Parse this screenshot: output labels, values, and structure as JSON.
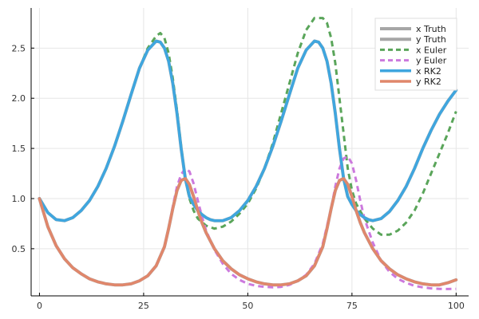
{
  "chart_data": {
    "type": "line",
    "title": "",
    "xlabel": "",
    "ylabel": "",
    "xlim": [
      -2,
      103
    ],
    "ylim": [
      0.03,
      2.9
    ],
    "xticks": [
      0,
      25,
      50,
      75,
      100
    ],
    "yticks": [
      0.5,
      1.0,
      1.5,
      2.0,
      2.5
    ],
    "xtick_labels": [
      "0",
      "25",
      "50",
      "75",
      "100"
    ],
    "ytick_labels": [
      "0.5",
      "1.0",
      "1.5",
      "2.0",
      "2.5"
    ],
    "grid": true,
    "legend_position": "top-right",
    "series": [
      {
        "name": "x Truth",
        "color": "#a6a6a6",
        "style": "solid",
        "width": 4,
        "x": [
          0,
          2,
          4,
          6,
          8,
          10,
          12,
          14,
          16,
          18,
          20,
          22,
          24,
          26,
          28,
          29,
          30,
          31,
          32,
          33,
          34,
          35,
          36,
          37,
          38,
          39,
          40,
          41,
          42,
          44,
          46,
          48,
          50,
          52,
          54,
          56,
          58,
          60,
          62,
          64,
          66,
          67,
          68,
          69,
          70,
          71,
          72,
          73,
          74,
          75,
          76,
          77,
          78,
          79,
          80,
          82,
          84,
          86,
          88,
          90,
          92,
          94,
          96,
          98,
          100
        ],
        "y": [
          1.0,
          0.86,
          0.79,
          0.78,
          0.81,
          0.88,
          0.98,
          1.12,
          1.3,
          1.52,
          1.77,
          2.04,
          2.3,
          2.48,
          2.57,
          2.56,
          2.5,
          2.37,
          2.15,
          1.85,
          1.5,
          1.2,
          1.02,
          0.94,
          0.88,
          0.84,
          0.81,
          0.79,
          0.78,
          0.78,
          0.81,
          0.88,
          0.98,
          1.12,
          1.3,
          1.52,
          1.77,
          2.04,
          2.3,
          2.48,
          2.57,
          2.56,
          2.5,
          2.37,
          2.15,
          1.85,
          1.5,
          1.2,
          1.02,
          0.94,
          0.88,
          0.84,
          0.81,
          0.79,
          0.78,
          0.8,
          0.87,
          0.98,
          1.12,
          1.3,
          1.5,
          1.68,
          1.84,
          1.97,
          2.08
        ]
      },
      {
        "name": "y Truth",
        "color": "#a6a6a6",
        "style": "solid",
        "width": 4,
        "x": [
          0,
          2,
          4,
          6,
          8,
          10,
          12,
          14,
          16,
          18,
          20,
          22,
          24,
          26,
          28,
          30,
          31,
          32,
          33,
          34,
          35,
          36,
          37,
          38,
          39,
          40,
          42,
          44,
          46,
          48,
          50,
          52,
          54,
          56,
          58,
          60,
          62,
          64,
          66,
          68,
          69,
          70,
          71,
          72,
          73,
          74,
          75,
          76,
          77,
          78,
          80,
          82,
          84,
          86,
          88,
          90,
          92,
          94,
          96,
          98,
          100
        ],
        "y": [
          1.0,
          0.72,
          0.53,
          0.4,
          0.31,
          0.25,
          0.2,
          0.17,
          0.15,
          0.14,
          0.14,
          0.15,
          0.18,
          0.23,
          0.33,
          0.52,
          0.7,
          0.9,
          1.08,
          1.18,
          1.2,
          1.14,
          1.02,
          0.88,
          0.76,
          0.66,
          0.5,
          0.38,
          0.3,
          0.24,
          0.2,
          0.17,
          0.15,
          0.14,
          0.14,
          0.15,
          0.18,
          0.23,
          0.33,
          0.52,
          0.7,
          0.9,
          1.08,
          1.18,
          1.2,
          1.14,
          1.02,
          0.88,
          0.76,
          0.66,
          0.5,
          0.38,
          0.3,
          0.24,
          0.2,
          0.17,
          0.15,
          0.14,
          0.14,
          0.16,
          0.19
        ]
      },
      {
        "name": "x Euler",
        "color": "#5aa55a",
        "style": "dashed",
        "width": 3,
        "x": [
          0,
          2,
          4,
          6,
          8,
          10,
          12,
          14,
          16,
          18,
          20,
          22,
          24,
          26,
          28,
          29,
          30,
          31,
          32,
          33,
          34,
          35,
          36,
          37,
          38,
          40,
          42,
          44,
          46,
          48,
          50,
          52,
          54,
          56,
          58,
          60,
          62,
          64,
          66,
          68,
          69,
          70,
          71,
          72,
          73,
          74,
          75,
          76,
          78,
          80,
          82,
          84,
          86,
          88,
          90,
          92,
          94,
          96,
          98,
          100
        ],
        "y": [
          1.0,
          0.86,
          0.79,
          0.78,
          0.81,
          0.88,
          0.98,
          1.12,
          1.3,
          1.52,
          1.77,
          2.04,
          2.3,
          2.5,
          2.62,
          2.65,
          2.6,
          2.45,
          2.2,
          1.88,
          1.52,
          1.2,
          1.0,
          0.88,
          0.8,
          0.73,
          0.7,
          0.72,
          0.77,
          0.85,
          0.95,
          1.1,
          1.3,
          1.55,
          1.85,
          2.15,
          2.45,
          2.68,
          2.8,
          2.8,
          2.75,
          2.6,
          2.35,
          2.0,
          1.65,
          1.3,
          1.08,
          0.95,
          0.8,
          0.7,
          0.64,
          0.64,
          0.68,
          0.76,
          0.88,
          1.05,
          1.25,
          1.45,
          1.65,
          1.87
        ]
      },
      {
        "name": "y Euler",
        "color": "#cc79dd",
        "style": "dashed",
        "width": 3,
        "x": [
          0,
          2,
          4,
          6,
          8,
          10,
          12,
          14,
          16,
          18,
          20,
          22,
          24,
          26,
          28,
          30,
          31,
          32,
          33,
          34,
          35,
          36,
          37,
          38,
          39,
          40,
          42,
          44,
          46,
          48,
          50,
          52,
          54,
          56,
          58,
          60,
          62,
          64,
          66,
          68,
          70,
          71,
          72,
          73,
          74,
          75,
          76,
          77,
          78,
          80,
          82,
          84,
          86,
          88,
          90,
          92,
          94,
          96,
          98,
          100
        ],
        "y": [
          1.0,
          0.72,
          0.53,
          0.4,
          0.31,
          0.25,
          0.2,
          0.17,
          0.15,
          0.14,
          0.14,
          0.15,
          0.18,
          0.23,
          0.33,
          0.52,
          0.7,
          0.92,
          1.12,
          1.24,
          1.3,
          1.27,
          1.15,
          0.98,
          0.82,
          0.68,
          0.49,
          0.35,
          0.25,
          0.19,
          0.15,
          0.13,
          0.12,
          0.115,
          0.12,
          0.14,
          0.18,
          0.24,
          0.35,
          0.55,
          0.9,
          1.12,
          1.3,
          1.4,
          1.42,
          1.35,
          1.18,
          0.98,
          0.8,
          0.56,
          0.38,
          0.27,
          0.2,
          0.16,
          0.13,
          0.115,
          0.105,
          0.1,
          0.098,
          0.1
        ]
      },
      {
        "name": "x RK2",
        "color": "#3fa6df",
        "style": "solid",
        "width": 3.5,
        "x": [
          0,
          2,
          4,
          6,
          8,
          10,
          12,
          14,
          16,
          18,
          20,
          22,
          24,
          26,
          28,
          29,
          30,
          31,
          32,
          33,
          34,
          35,
          36,
          37,
          38,
          39,
          40,
          41,
          42,
          44,
          46,
          48,
          50,
          52,
          54,
          56,
          58,
          60,
          62,
          64,
          66,
          67,
          68,
          69,
          70,
          71,
          72,
          73,
          74,
          75,
          76,
          77,
          78,
          79,
          80,
          82,
          84,
          86,
          88,
          90,
          92,
          94,
          96,
          98,
          100
        ],
        "y": [
          1.0,
          0.86,
          0.79,
          0.78,
          0.81,
          0.88,
          0.98,
          1.12,
          1.3,
          1.52,
          1.77,
          2.04,
          2.3,
          2.48,
          2.57,
          2.56,
          2.5,
          2.37,
          2.15,
          1.85,
          1.5,
          1.2,
          1.02,
          0.94,
          0.88,
          0.84,
          0.81,
          0.79,
          0.78,
          0.78,
          0.81,
          0.88,
          0.98,
          1.12,
          1.3,
          1.52,
          1.77,
          2.04,
          2.3,
          2.48,
          2.57,
          2.56,
          2.5,
          2.37,
          2.15,
          1.85,
          1.5,
          1.2,
          1.02,
          0.94,
          0.88,
          0.84,
          0.81,
          0.79,
          0.78,
          0.8,
          0.87,
          0.98,
          1.12,
          1.3,
          1.5,
          1.68,
          1.84,
          1.97,
          2.08
        ]
      },
      {
        "name": "y RK2",
        "color": "#e0876b",
        "style": "solid",
        "width": 3.5,
        "x": [
          0,
          2,
          4,
          6,
          8,
          10,
          12,
          14,
          16,
          18,
          20,
          22,
          24,
          26,
          28,
          30,
          31,
          32,
          33,
          34,
          35,
          36,
          37,
          38,
          39,
          40,
          42,
          44,
          46,
          48,
          50,
          52,
          54,
          56,
          58,
          60,
          62,
          64,
          66,
          68,
          69,
          70,
          71,
          72,
          73,
          74,
          75,
          76,
          77,
          78,
          80,
          82,
          84,
          86,
          88,
          90,
          92,
          94,
          96,
          98,
          100
        ],
        "y": [
          1.0,
          0.72,
          0.53,
          0.4,
          0.31,
          0.25,
          0.2,
          0.17,
          0.15,
          0.14,
          0.14,
          0.15,
          0.18,
          0.23,
          0.33,
          0.52,
          0.7,
          0.9,
          1.08,
          1.18,
          1.2,
          1.14,
          1.02,
          0.88,
          0.76,
          0.66,
          0.5,
          0.38,
          0.3,
          0.24,
          0.2,
          0.17,
          0.15,
          0.14,
          0.14,
          0.15,
          0.18,
          0.23,
          0.33,
          0.52,
          0.7,
          0.9,
          1.08,
          1.18,
          1.2,
          1.14,
          1.02,
          0.88,
          0.76,
          0.66,
          0.5,
          0.38,
          0.3,
          0.24,
          0.2,
          0.17,
          0.15,
          0.14,
          0.14,
          0.16,
          0.19
        ]
      }
    ]
  }
}
